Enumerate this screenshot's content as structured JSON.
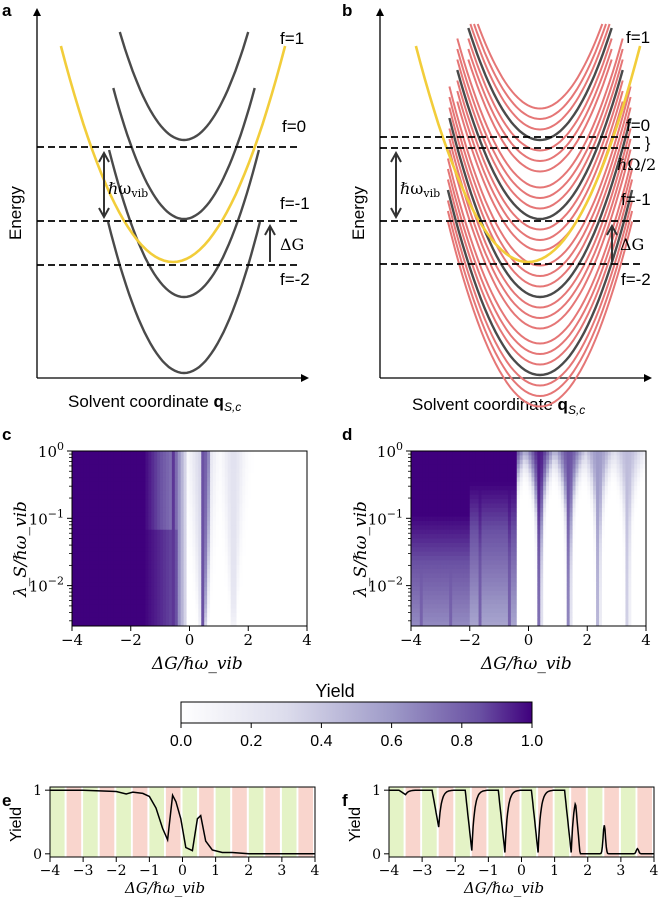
{
  "panels": {
    "a": {
      "label": "a"
    },
    "b": {
      "label": "b"
    },
    "c": {
      "label": "c"
    },
    "d": {
      "label": "d"
    },
    "e": {
      "label": "e"
    },
    "f": {
      "label": "f"
    }
  },
  "energy_diagram": {
    "ylabel": "Energy",
    "xlabel_text": "Solvent coordinate ",
    "xlabel_bold": "q",
    "xlabel_sub": "S,c",
    "levels": [
      "f=1",
      "f=0",
      "f=-1",
      "f=-2"
    ],
    "hbar_omega_vib": "ℏω",
    "vib_sub": "vib",
    "delta_g": "ΔG",
    "half_omega": "ℏΩ/2",
    "brace": "}",
    "colors": {
      "donor": "#F2CD3A",
      "acceptor": "#4a4a4a",
      "replica": "#E57676"
    }
  },
  "chart_data": [
    {
      "panel": "c",
      "type": "heatmap",
      "xlabel": "ΔG/ℏω_vib",
      "ylabel": "λ_S/ℏω_vib",
      "xlim": [
        -4,
        4
      ],
      "ylim_log10": [
        -2.6,
        0
      ],
      "xticks": [
        -4,
        -2,
        0,
        2,
        4
      ],
      "xtick_labels": [
        "−4",
        "−2",
        "0",
        "2",
        "4"
      ],
      "yticks_log10": [
        0,
        -1,
        -2
      ],
      "ytick_base": "10",
      "ytick_exponents": [
        "0",
        "−1",
        "−2"
      ],
      "description_values": {
        "full_yield_below": -1.6,
        "step_centers": [
          -0.5,
          0.5,
          1.5
        ]
      }
    },
    {
      "panel": "d",
      "type": "heatmap",
      "xlabel": "ΔG/ℏω_vib",
      "ylabel": "λ_S/ℏω_vib",
      "xlim": [
        -4,
        4
      ],
      "ylim_log10": [
        -2.6,
        0
      ],
      "xticks": [
        -4,
        -2,
        0,
        2,
        4
      ],
      "xtick_labels": [
        "−4",
        "−2",
        "0",
        "2",
        "4"
      ],
      "yticks_log10": [
        0,
        -1,
        -2
      ],
      "ytick_base": "10",
      "ytick_exponents": [
        "0",
        "−1",
        "−2"
      ],
      "resonances": [
        -3.5,
        -2.5,
        -1.5,
        -0.5,
        0.5,
        1.5,
        2.5,
        3.5
      ]
    },
    {
      "panel": "e",
      "type": "line",
      "xlabel": "ΔG/ℏω_vib",
      "ylabel": "Yield",
      "xlim": [
        -4,
        4
      ],
      "ylim": [
        -0.05,
        1.05
      ],
      "xticks": [
        -4,
        -3,
        -2,
        -1,
        0,
        1,
        2,
        3,
        4
      ],
      "xtick_labels": [
        "−4",
        "−3",
        "−2",
        "−1",
        "0",
        "1",
        "2",
        "3",
        "4"
      ],
      "yticks": [
        0,
        1
      ],
      "ytick_labels": [
        "0",
        "1"
      ],
      "x": [
        -4,
        -3,
        -2,
        -1.7,
        -1.5,
        -1.2,
        -1.0,
        -0.8,
        -0.6,
        -0.45,
        -0.3,
        -0.2,
        -0.05,
        0.1,
        0.3,
        0.45,
        0.55,
        0.7,
        0.9,
        1.2,
        1.5,
        2,
        3,
        4
      ],
      "y": [
        1.0,
        1.0,
        0.98,
        0.94,
        0.97,
        0.95,
        0.9,
        0.72,
        0.4,
        0.22,
        0.92,
        0.82,
        0.55,
        0.1,
        0.05,
        0.55,
        0.6,
        0.2,
        0.06,
        0.02,
        0.02,
        0.0,
        0.0,
        0.0
      ]
    },
    {
      "panel": "f",
      "type": "line",
      "xlabel": "ΔG/ℏω_vib",
      "ylabel": "Yield",
      "xlim": [
        -4,
        4
      ],
      "ylim": [
        -0.05,
        1.05
      ],
      "xticks": [
        -4,
        -3,
        -2,
        -1,
        0,
        1,
        2,
        3,
        4
      ],
      "xtick_labels": [
        "−4",
        "−3",
        "−2",
        "−1",
        "0",
        "1",
        "2",
        "3",
        "4"
      ],
      "yticks": [
        0,
        1
      ],
      "ytick_labels": [
        "0",
        "1"
      ],
      "resonances": [
        -3.5,
        -2.5,
        -1.5,
        -0.5,
        0.5,
        1.5,
        2.5,
        3.5
      ],
      "dip_minima": [
        0.93,
        0.42,
        0.05,
        0.02,
        0.02,
        0.02,
        0.55,
        0.92
      ]
    }
  ],
  "colorbar": {
    "title": "Yield",
    "ticks": [
      0.0,
      0.2,
      0.4,
      0.6,
      0.8,
      1.0
    ],
    "tick_labels": [
      "0.0",
      "0.2",
      "0.4",
      "0.6",
      "0.8",
      "1.0"
    ],
    "color_low": "#ffffff",
    "color_high": "#3f007d"
  },
  "stripe_colors": {
    "green": "#E4F3C6",
    "red": "#F9D5CD"
  }
}
